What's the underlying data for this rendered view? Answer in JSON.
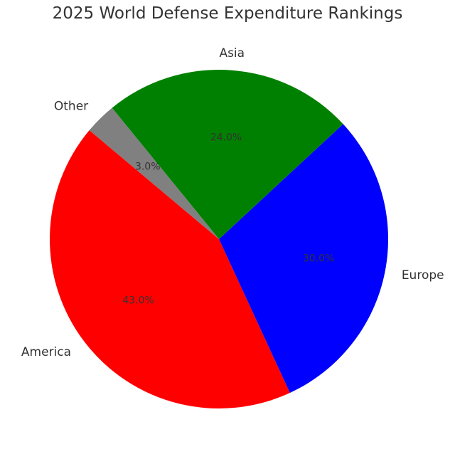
{
  "chart_data": {
    "type": "pie",
    "title": "2025 World Defense Expenditure Rankings",
    "categories": [
      "America",
      "Europe",
      "Asia",
      "Other"
    ],
    "values": [
      43.0,
      30.0,
      24.0,
      3.0
    ],
    "value_labels": [
      "43.0%",
      "30.0%",
      "24.0%",
      "3.0%"
    ],
    "colors": [
      "#ff0000",
      "#0000ff",
      "#008000",
      "#808080"
    ],
    "start_angle_deg": 140,
    "direction": "counterclockwise",
    "legend": "none"
  }
}
